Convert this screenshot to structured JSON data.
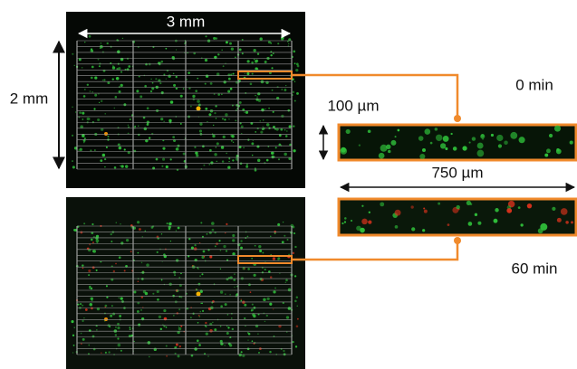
{
  "panel_top": {
    "width_label": "3 mm",
    "height_label": "2 mm"
  },
  "zoom_top": {
    "time_label": "0 min",
    "height_label": "100 µm"
  },
  "zoom_bottom": {
    "time_label": "60 min",
    "width_label": "750 µm"
  }
}
